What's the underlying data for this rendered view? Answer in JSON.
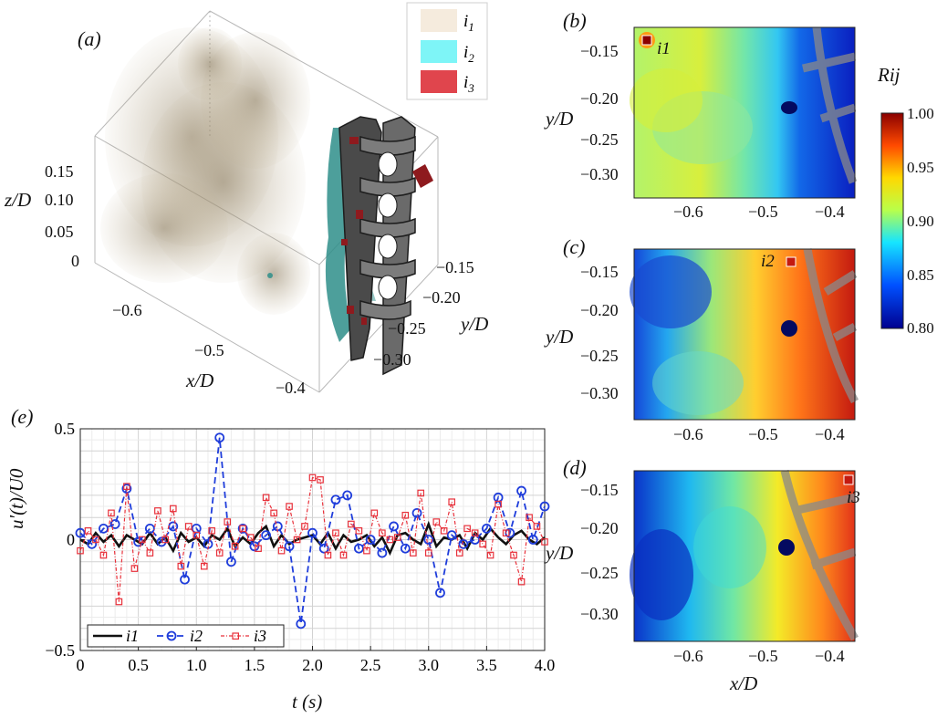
{
  "panels": {
    "a": {
      "label": "(a)",
      "legend": [
        "i1",
        "i2",
        "i3"
      ],
      "legend_colors": [
        "#f5ebdd",
        "#7ef5f7",
        "#e0454d"
      ],
      "z_ticks": [
        "0.15",
        "0.10",
        "0.05",
        "0"
      ],
      "z_label": "z/D",
      "x_ticks": [
        "−0.6",
        "−0.5",
        "−0.4"
      ],
      "x_label": "x/D",
      "y_ticks": [
        "−0.15",
        "−0.20",
        "−0.25",
        "−0.30"
      ],
      "y_label": "y/D"
    },
    "b": {
      "label": "(b)",
      "probe": "i1"
    },
    "c": {
      "label": "(c)",
      "probe": "i2"
    },
    "d": {
      "label": "(d)",
      "probe": "i3"
    },
    "maps_y_ticks": [
      "−0.15",
      "−0.20",
      "−0.25",
      "−0.30"
    ],
    "maps_x_ticks": [
      "−0.6",
      "−0.5",
      "−0.4"
    ],
    "maps_y_label": "y/D",
    "maps_x_label": "x/D",
    "colorbar": {
      "title": "Rij",
      "ticks": [
        "1.00",
        "0.95",
        "0.90",
        "0.85",
        "0.80"
      ]
    }
  },
  "chart_data": {
    "type": "line",
    "panel_label": "(e)",
    "xlabel": "t (s)",
    "ylabel": "u′(t)/U0",
    "xlim": [
      0,
      4.0
    ],
    "ylim": [
      -0.5,
      0.5
    ],
    "x_ticks": [
      "0",
      "0.5",
      "1.0",
      "1.5",
      "2.0",
      "2.5",
      "3.0",
      "3.5",
      "4.0"
    ],
    "y_ticks": [
      "0.5",
      "0",
      "−0.5"
    ],
    "grid": true,
    "legend_position": "bottom-left",
    "series": [
      {
        "name": "i1",
        "color": "#111111",
        "marker": "none",
        "x": [
          0,
          0.067,
          0.133,
          0.2,
          0.267,
          0.333,
          0.4,
          0.467,
          0.533,
          0.6,
          0.667,
          0.733,
          0.8,
          0.867,
          0.933,
          1.0,
          1.067,
          1.133,
          1.2,
          1.267,
          1.333,
          1.4,
          1.467,
          1.533,
          1.6,
          1.667,
          1.733,
          1.8,
          1.867,
          1.933,
          2.0,
          2.067,
          2.133,
          2.2,
          2.267,
          2.333,
          2.4,
          2.467,
          2.533,
          2.6,
          2.667,
          2.733,
          2.8,
          2.867,
          2.933,
          3.0,
          3.067,
          3.133,
          3.2,
          3.267,
          3.333,
          3.4,
          3.467,
          3.533,
          3.6,
          3.667,
          3.733,
          3.8,
          3.867,
          3.933,
          4.0
        ],
        "y": [
          0.0,
          -0.02,
          0.03,
          -0.01,
          0.02,
          -0.03,
          0.02,
          0.0,
          -0.02,
          0.03,
          -0.02,
          0.01,
          -0.05,
          0.03,
          -0.01,
          0.01,
          -0.03,
          0.02,
          0.0,
          0.05,
          -0.03,
          0.01,
          -0.02,
          0.03,
          0.06,
          -0.03,
          0.02,
          -0.02,
          0.0,
          0.01,
          0.02,
          -0.02,
          0.03,
          -0.04,
          0.02,
          -0.01,
          0.0,
          0.02,
          -0.03,
          0.01,
          -0.06,
          0.02,
          0.03,
          0.0,
          -0.02,
          0.07,
          -0.03,
          0.01,
          0.0,
          0.02,
          -0.04,
          0.03,
          0.0,
          0.05,
          0.01,
          -0.02,
          0.02,
          0.04,
          0.0,
          -0.02,
          0.01
        ]
      },
      {
        "name": "i2",
        "color": "#1f3ddb",
        "marker": "circle",
        "x": [
          0,
          0.1,
          0.2,
          0.3,
          0.4,
          0.5,
          0.6,
          0.7,
          0.8,
          0.9,
          1.0,
          1.1,
          1.2,
          1.3,
          1.4,
          1.5,
          1.6,
          1.7,
          1.8,
          1.9,
          2.0,
          2.1,
          2.2,
          2.3,
          2.4,
          2.5,
          2.6,
          2.7,
          2.8,
          2.9,
          3.0,
          3.1,
          3.2,
          3.3,
          3.4,
          3.5,
          3.6,
          3.7,
          3.8,
          3.9,
          4.0
        ],
        "y": [
          0.03,
          -0.02,
          0.05,
          0.07,
          0.23,
          -0.01,
          0.05,
          -0.01,
          0.06,
          -0.18,
          0.05,
          -0.02,
          0.46,
          -0.1,
          0.05,
          -0.03,
          0.02,
          0.06,
          -0.03,
          -0.38,
          0.03,
          -0.04,
          0.18,
          0.2,
          -0.04,
          0.0,
          -0.06,
          0.06,
          -0.04,
          0.12,
          0.0,
          -0.24,
          0.02,
          -0.02,
          0.0,
          0.05,
          0.19,
          0.03,
          0.22,
          0.0,
          0.15
        ]
      },
      {
        "name": "i3",
        "color": "#e8303a",
        "marker": "square",
        "x": [
          0,
          0.067,
          0.133,
          0.2,
          0.267,
          0.333,
          0.4,
          0.467,
          0.533,
          0.6,
          0.667,
          0.733,
          0.8,
          0.867,
          0.933,
          1.0,
          1.067,
          1.133,
          1.2,
          1.267,
          1.333,
          1.4,
          1.467,
          1.533,
          1.6,
          1.667,
          1.733,
          1.8,
          1.867,
          1.933,
          2.0,
          2.067,
          2.133,
          2.2,
          2.267,
          2.333,
          2.4,
          2.467,
          2.533,
          2.6,
          2.667,
          2.733,
          2.8,
          2.867,
          2.933,
          3.0,
          3.067,
          3.133,
          3.2,
          3.267,
          3.333,
          3.4,
          3.467,
          3.533,
          3.6,
          3.667,
          3.733,
          3.8,
          3.867,
          3.933,
          4.0
        ],
        "y": [
          -0.05,
          0.04,
          0.0,
          -0.07,
          0.12,
          -0.28,
          0.24,
          -0.13,
          0.0,
          -0.06,
          0.13,
          0.0,
          0.14,
          -0.12,
          0.06,
          0.02,
          -0.12,
          0.04,
          -0.06,
          0.08,
          -0.03,
          0.05,
          0.01,
          -0.04,
          0.19,
          0.12,
          -0.05,
          0.15,
          0.0,
          0.06,
          0.28,
          0.27,
          -0.07,
          0.03,
          -0.07,
          0.07,
          0.04,
          -0.05,
          0.12,
          0.03,
          0.0,
          0.01,
          0.11,
          -0.06,
          0.21,
          -0.06,
          0.08,
          0.04,
          0.17,
          -0.06,
          0.05,
          0.03,
          -0.02,
          -0.07,
          0.16,
          0.03,
          -0.07,
          -0.19,
          0.1,
          0.06,
          -0.01
        ]
      }
    ]
  }
}
